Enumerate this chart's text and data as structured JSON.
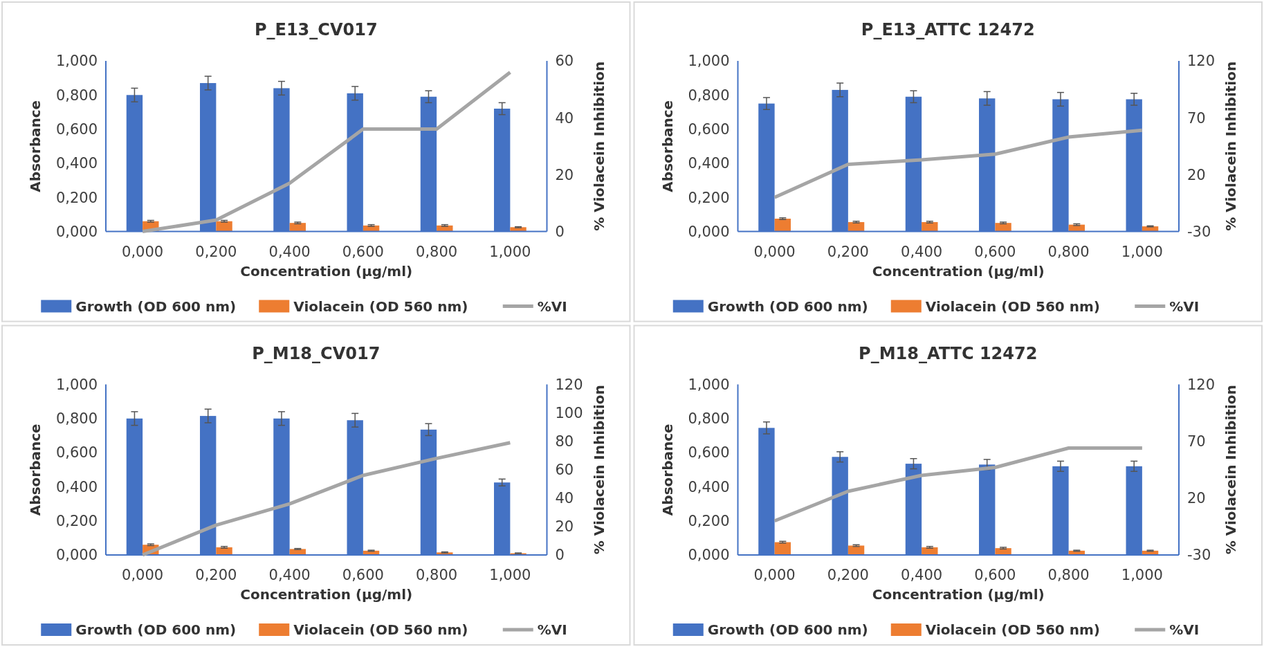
{
  "chart_data": [
    {
      "type": "bar",
      "title": "P_E13_CV017",
      "xlabel": "Concentration (µg/ml)",
      "ylabel": "Absorbance",
      "y2label": "% Violacein Inhibition",
      "categories": [
        "0,000",
        "0,200",
        "0,400",
        "0,600",
        "0,800",
        "1,000"
      ],
      "series": [
        {
          "name": "Growth (OD 600 nm)",
          "color": "#4472c4",
          "values": [
            0.8,
            0.87,
            0.84,
            0.81,
            0.79,
            0.72
          ],
          "errors": [
            0.04,
            0.04,
            0.04,
            0.04,
            0.035,
            0.035
          ]
        },
        {
          "name": "Violacein (OD 560 nm)",
          "color": "#ed7d31",
          "values": [
            0.06,
            0.06,
            0.05,
            0.035,
            0.035,
            0.025
          ],
          "errors": [
            0.005,
            0.005,
            0.005,
            0.005,
            0.005,
            0.003
          ]
        },
        {
          "name": "%VI",
          "type": "line",
          "axis": "y2",
          "color": "#a5a5a5",
          "values": [
            0,
            4,
            17,
            36,
            36,
            56
          ]
        }
      ],
      "ylim": [
        0,
        1
      ],
      "yticks": [
        {
          "value": 0,
          "label": "0,000"
        },
        {
          "value": 0.2,
          "label": "0,200"
        },
        {
          "value": 0.4,
          "label": "0,400"
        },
        {
          "value": 0.6,
          "label": "0,600"
        },
        {
          "value": 0.8,
          "label": "0,800"
        },
        {
          "value": 1,
          "label": "1,000"
        }
      ],
      "y2lim": [
        0,
        60
      ],
      "y2ticks": [
        0,
        20,
        40,
        60
      ],
      "legend": "bottom",
      "grid": false,
      "marker": "none"
    },
    {
      "type": "bar",
      "title": "P_E13_ATTC 12472",
      "xlabel": "Concentration (µg/ml)",
      "ylabel": "Absorbance",
      "y2label": "% Violacein Inhibition",
      "categories": [
        "0,000",
        "0,200",
        "0,400",
        "0,600",
        "0,800",
        "1,000"
      ],
      "series": [
        {
          "name": "Growth (OD 600 nm)",
          "color": "#4472c4",
          "values": [
            0.75,
            0.83,
            0.79,
            0.78,
            0.775,
            0.775
          ],
          "errors": [
            0.035,
            0.04,
            0.035,
            0.04,
            0.04,
            0.035
          ]
        },
        {
          "name": "Violacein (OD 560 nm)",
          "color": "#ed7d31",
          "values": [
            0.075,
            0.055,
            0.055,
            0.05,
            0.04,
            0.03
          ],
          "errors": [
            0.005,
            0.005,
            0.005,
            0.005,
            0.005,
            0.003
          ]
        },
        {
          "name": "%VI",
          "type": "line",
          "axis": "y2",
          "color": "#a5a5a5",
          "values": [
            0,
            29,
            33,
            38,
            53,
            59
          ]
        }
      ],
      "ylim": [
        0,
        1
      ],
      "yticks": [
        {
          "value": 0,
          "label": "0,000"
        },
        {
          "value": 0.2,
          "label": "0,200"
        },
        {
          "value": 0.4,
          "label": "0,400"
        },
        {
          "value": 0.6,
          "label": "0,600"
        },
        {
          "value": 0.8,
          "label": "0,800"
        },
        {
          "value": 1,
          "label": "1,000"
        }
      ],
      "y2lim": [
        -30,
        120
      ],
      "y2ticks": [
        -30,
        20,
        70,
        120
      ],
      "legend": "bottom",
      "grid": false,
      "marker": "none"
    },
    {
      "type": "bar",
      "title": "P_M18_CV017",
      "xlabel": "Concentration (µg/ml)",
      "ylabel": "Absorbance",
      "y2label": "% Violacein Inhibition",
      "categories": [
        "0,000",
        "0,200",
        "0,400",
        "0,600",
        "0,800",
        "1,000"
      ],
      "series": [
        {
          "name": "Growth (OD 600 nm)",
          "color": "#4472c4",
          "values": [
            0.8,
            0.815,
            0.8,
            0.79,
            0.735,
            0.425
          ],
          "errors": [
            0.04,
            0.04,
            0.04,
            0.04,
            0.035,
            0.02
          ]
        },
        {
          "name": "Violacein (OD 560 nm)",
          "color": "#ed7d31",
          "values": [
            0.06,
            0.045,
            0.035,
            0.025,
            0.015,
            0.01
          ],
          "errors": [
            0.005,
            0.005,
            0.003,
            0.003,
            0.003,
            0.002
          ]
        },
        {
          "name": "%VI",
          "type": "line",
          "axis": "y2",
          "color": "#a5a5a5",
          "values": [
            0,
            21,
            36,
            56,
            68,
            79
          ]
        }
      ],
      "ylim": [
        0,
        1
      ],
      "yticks": [
        {
          "value": 0,
          "label": "0,000"
        },
        {
          "value": 0.2,
          "label": "0,200"
        },
        {
          "value": 0.4,
          "label": "0,400"
        },
        {
          "value": 0.6,
          "label": "0,600"
        },
        {
          "value": 0.8,
          "label": "0,800"
        },
        {
          "value": 1,
          "label": "1,000"
        }
      ],
      "y2lim": [
        0,
        120
      ],
      "y2ticks": [
        0,
        20,
        40,
        60,
        80,
        100,
        120
      ],
      "legend": "bottom",
      "grid": false,
      "marker": "none"
    },
    {
      "type": "bar",
      "title": "P_M18_ATTC 12472",
      "xlabel": "Concentration (µg/ml)",
      "ylabel": "Absorbance",
      "y2label": "% Violacein Inhibition",
      "categories": [
        "0,000",
        "0,200",
        "0,400",
        "0,600",
        "0,800",
        "1,000"
      ],
      "series": [
        {
          "name": "Growth (OD 600 nm)",
          "color": "#4472c4",
          "values": [
            0.745,
            0.575,
            0.535,
            0.53,
            0.52,
            0.52
          ],
          "errors": [
            0.035,
            0.03,
            0.03,
            0.03,
            0.03,
            0.03
          ]
        },
        {
          "name": "Violacein (OD 560 nm)",
          "color": "#ed7d31",
          "values": [
            0.075,
            0.055,
            0.045,
            0.04,
            0.025,
            0.025
          ],
          "errors": [
            0.005,
            0.005,
            0.005,
            0.005,
            0.003,
            0.003
          ]
        },
        {
          "name": "%VI",
          "type": "line",
          "axis": "y2",
          "color": "#a5a5a5",
          "values": [
            0,
            26,
            40,
            47,
            64,
            64
          ]
        }
      ],
      "ylim": [
        0,
        1
      ],
      "yticks": [
        {
          "value": 0,
          "label": "0,000"
        },
        {
          "value": 0.2,
          "label": "0,200"
        },
        {
          "value": 0.4,
          "label": "0,400"
        },
        {
          "value": 0.6,
          "label": "0,600"
        },
        {
          "value": 0.8,
          "label": "0,800"
        },
        {
          "value": 1,
          "label": "1,000"
        }
      ],
      "y2lim": [
        -30,
        120
      ],
      "y2ticks": [
        -30,
        20,
        70,
        120
      ],
      "legend": "bottom",
      "grid": false,
      "marker": "none"
    }
  ]
}
